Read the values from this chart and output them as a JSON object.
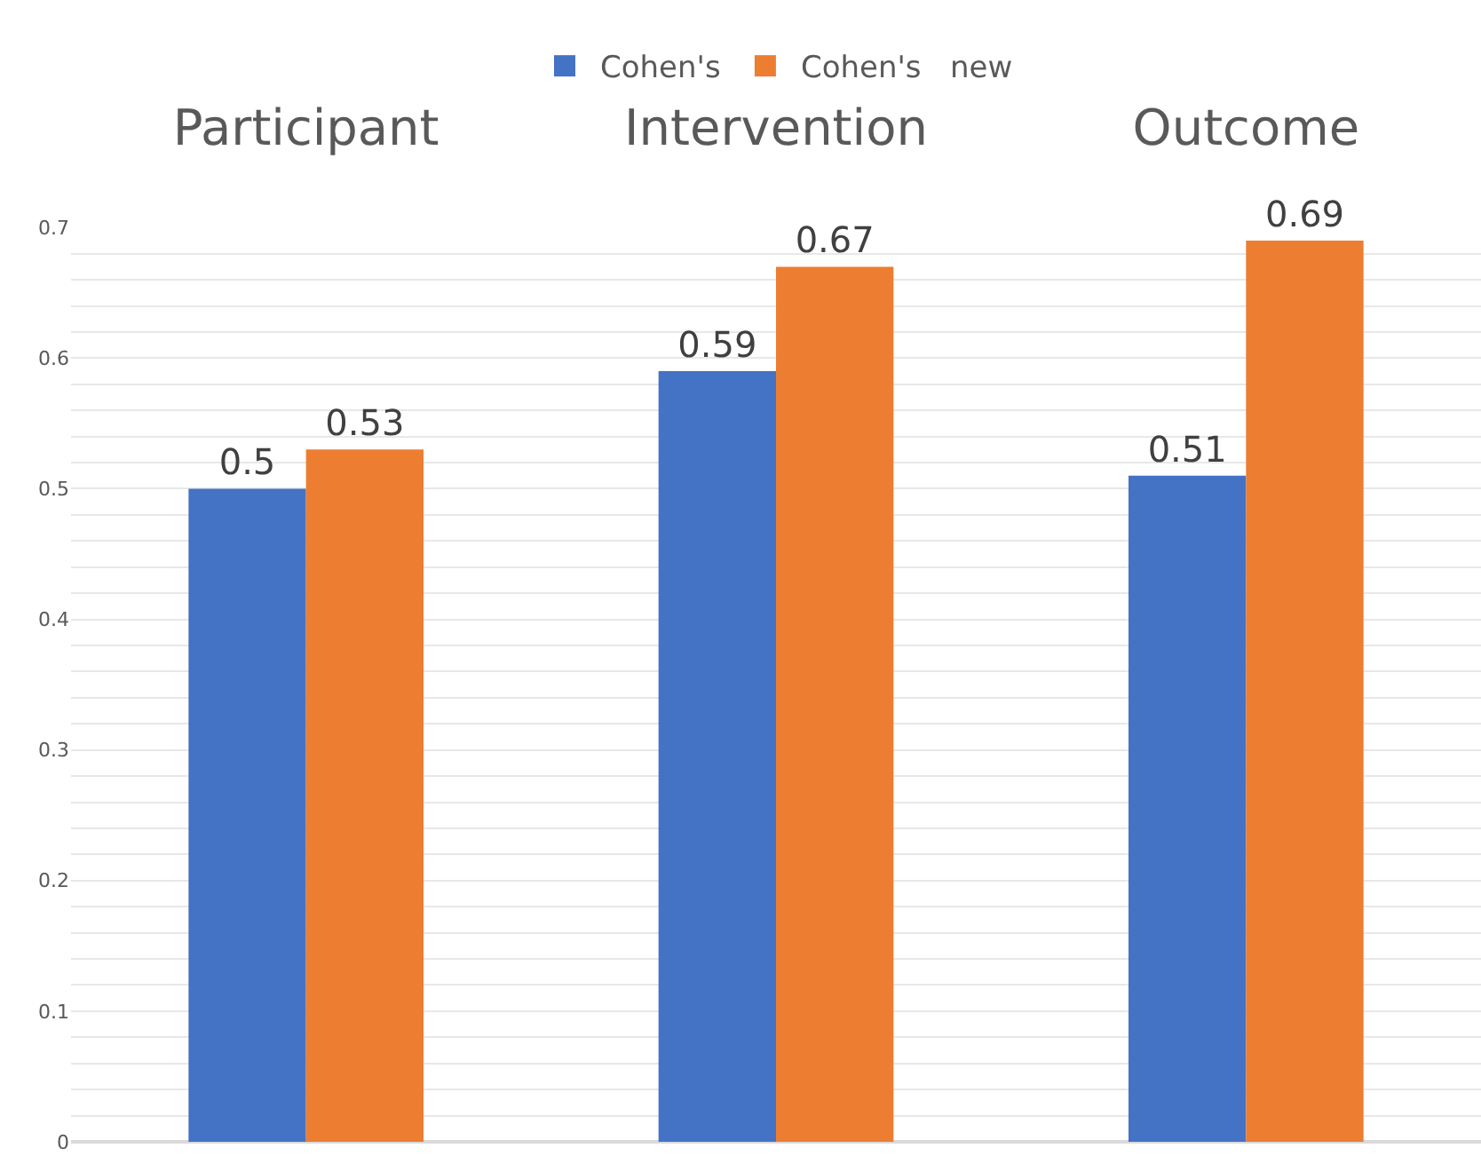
{
  "chart_data": {
    "type": "bar",
    "categories": [
      "Participant",
      "Intervention",
      "Outcome"
    ],
    "series": [
      {
        "name": "Cohen's",
        "color": "#4472c4",
        "values": [
          0.5,
          0.59,
          0.51
        ]
      },
      {
        "name": "Cohen's   new",
        "color": "#ed7d31",
        "values": [
          0.53,
          0.67,
          0.69
        ]
      }
    ],
    "ylim": [
      0,
      0.7
    ],
    "yticks": [
      0,
      {
        "value": 0.02,
        "label": null
      },
      {
        "value": 0.04,
        "label": null
      },
      {
        "value": 0.06,
        "label": null
      },
      {
        "value": 0.08,
        "label": null
      },
      0.1,
      {
        "value": 0.12,
        "label": null
      },
      {
        "value": 0.14,
        "label": null
      },
      {
        "value": 0.16,
        "label": null
      },
      {
        "value": 0.18,
        "label": null
      },
      0.2,
      {
        "value": 0.22,
        "label": null
      },
      {
        "value": 0.24,
        "label": null
      },
      {
        "value": 0.26,
        "label": null
      },
      {
        "value": 0.28,
        "label": null
      },
      0.3,
      {
        "value": 0.32,
        "label": null
      },
      {
        "value": 0.34,
        "label": null
      },
      {
        "value": 0.36,
        "label": null
      },
      {
        "value": 0.38,
        "label": null
      },
      0.4,
      {
        "value": 0.42,
        "label": null
      },
      {
        "value": 0.44,
        "label": null
      },
      {
        "value": 0.46,
        "label": null
      },
      {
        "value": 0.48,
        "label": null
      },
      0.5,
      {
        "value": 0.52,
        "label": null
      },
      {
        "value": 0.54,
        "label": null
      },
      {
        "value": 0.56,
        "label": null
      },
      {
        "value": 0.58,
        "label": null
      },
      0.6,
      {
        "value": 0.62,
        "label": null
      },
      {
        "value": 0.64,
        "label": null
      },
      {
        "value": 0.66,
        "label": null
      },
      {
        "value": 0.68,
        "label": null
      },
      0.7
    ],
    "grid": "y",
    "legend": "top",
    "data_labels": true
  }
}
